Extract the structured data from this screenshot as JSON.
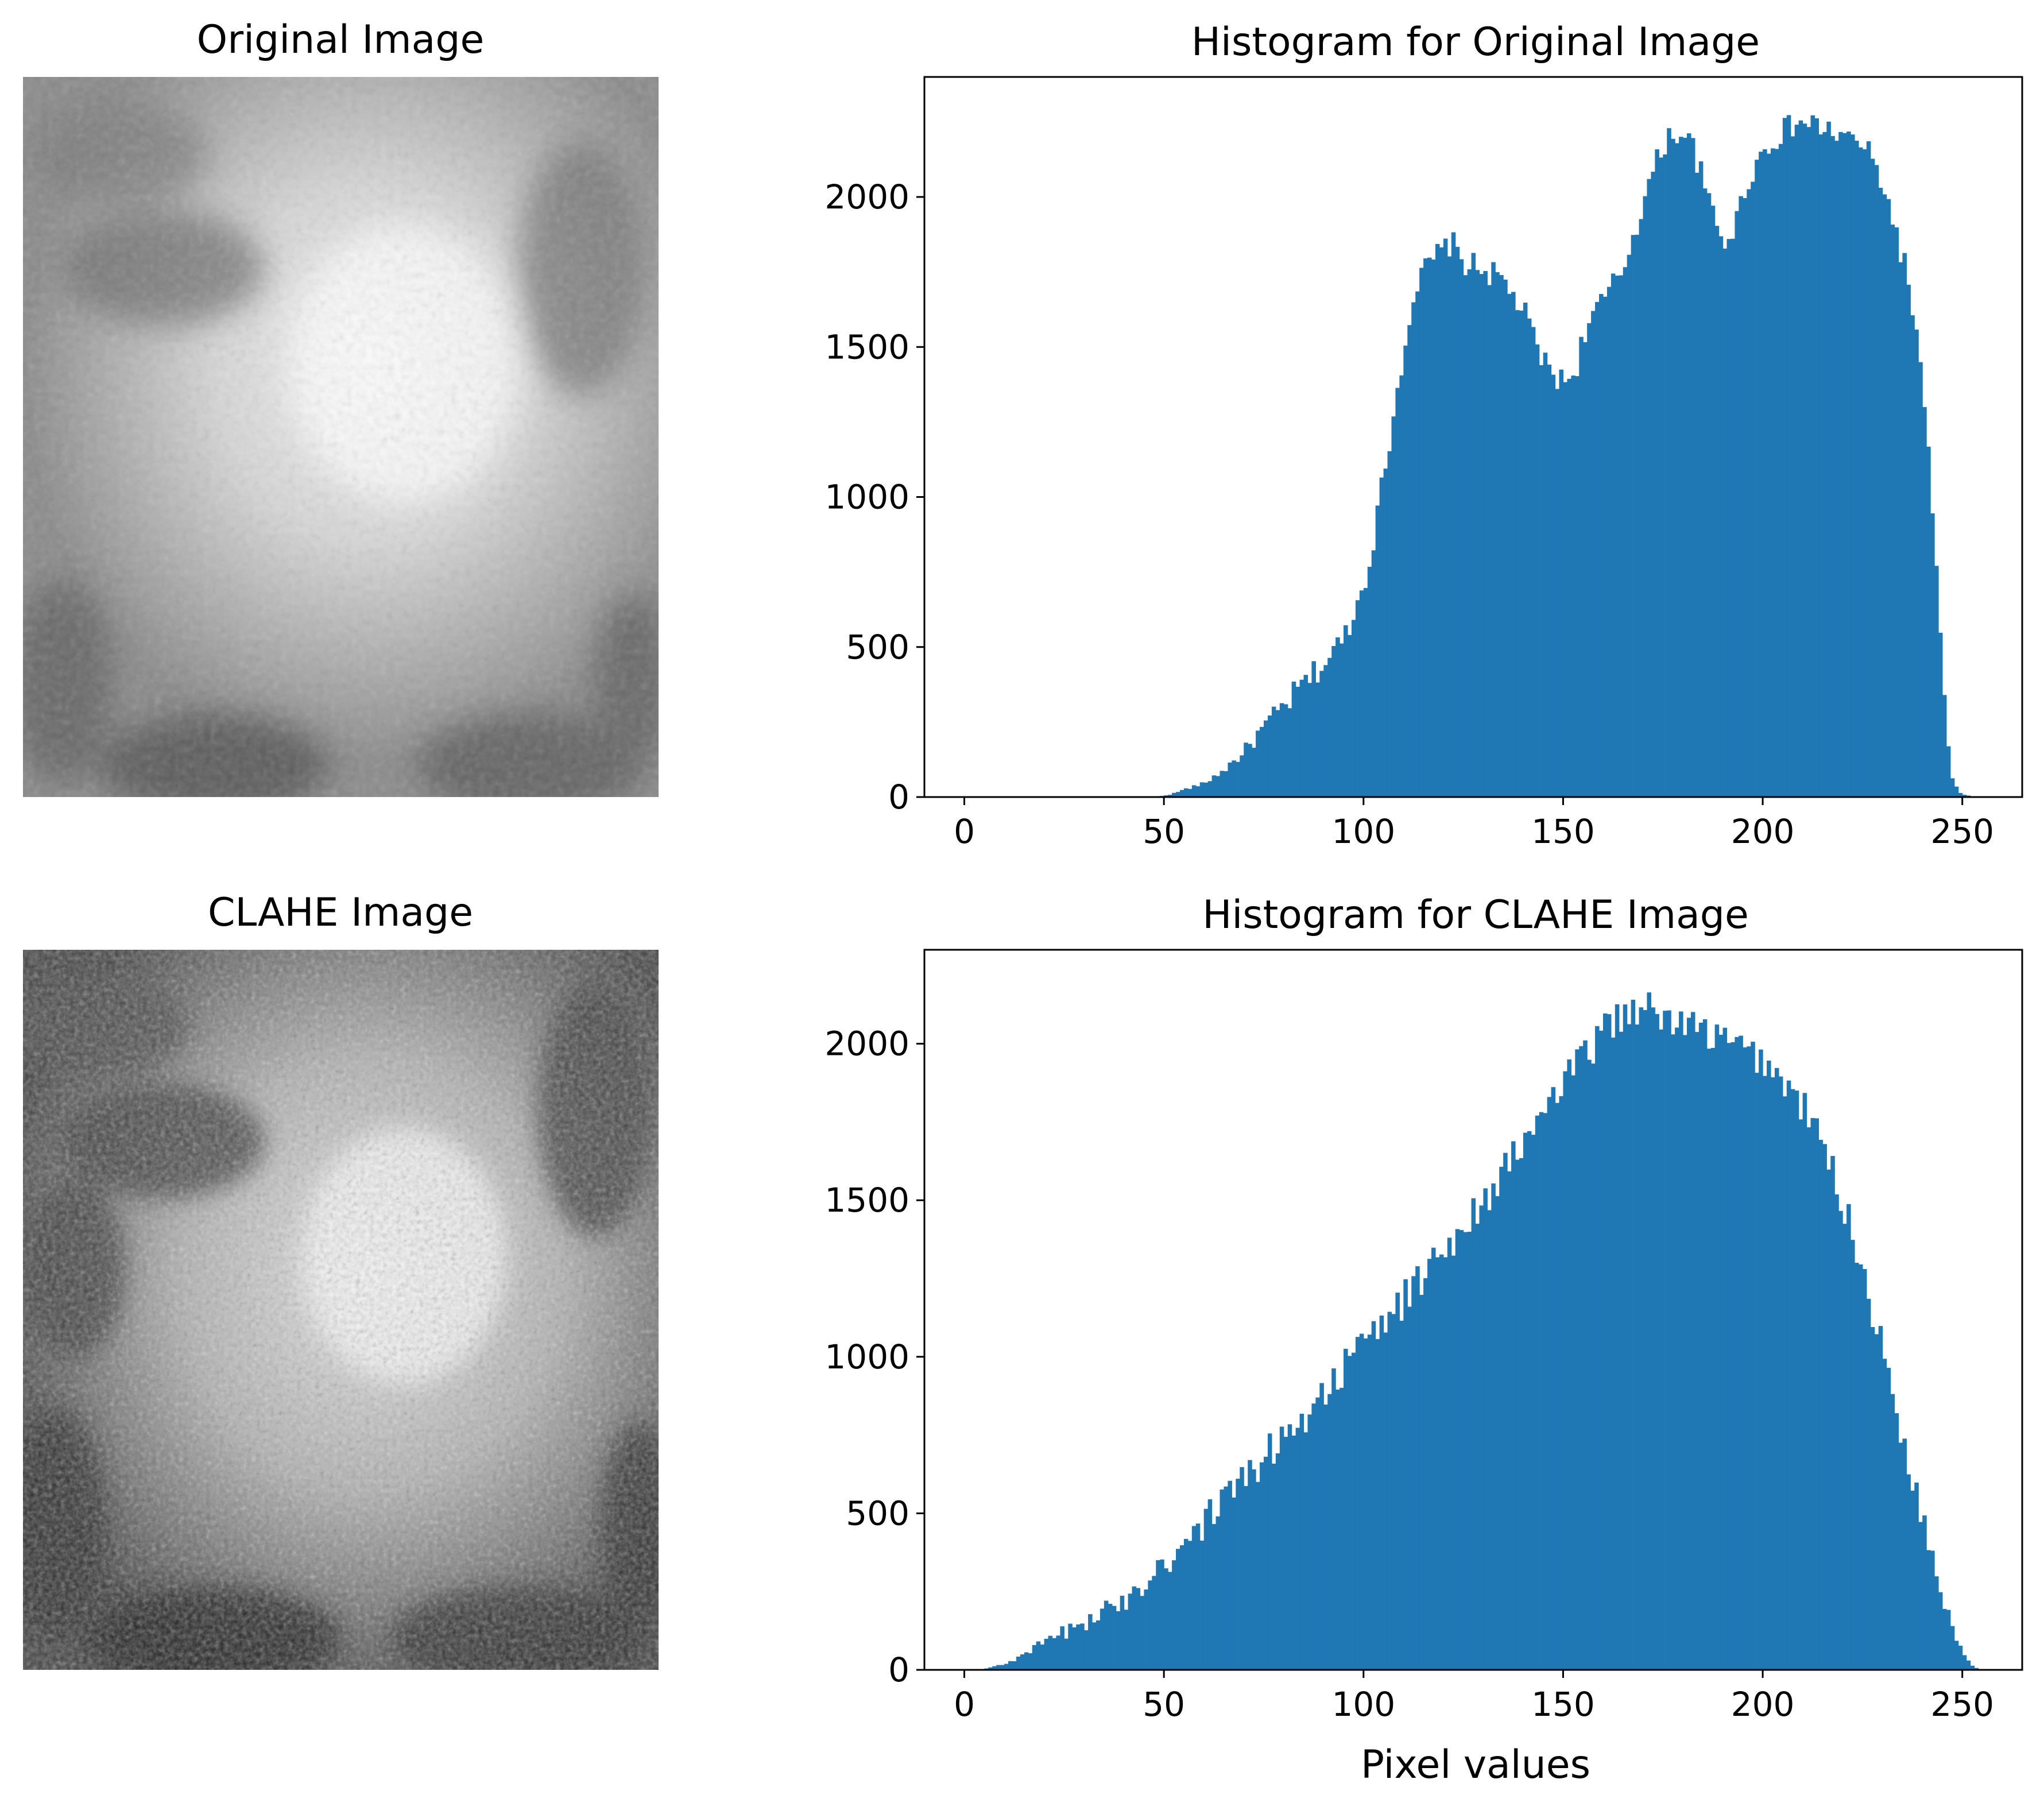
{
  "figure": {
    "panels": [
      {
        "type": "image",
        "title": "Original Image"
      },
      {
        "type": "image",
        "title": "CLAHE Image"
      }
    ]
  },
  "colors": {
    "bar": "#1f77b4",
    "axis": "#000000"
  },
  "chart_data": [
    {
      "type": "bar",
      "title": "Histogram for Original Image",
      "xlabel": "",
      "ylabel": "",
      "xlim": [
        -10,
        265
      ],
      "ylim": [
        0,
        2400
      ],
      "xticks": [
        0,
        50,
        100,
        150,
        200,
        250
      ],
      "yticks": [
        0,
        500,
        1000,
        1500,
        2000
      ],
      "bins": 256,
      "anchors": [
        [
          0,
          0
        ],
        [
          48,
          0
        ],
        [
          52,
          10
        ],
        [
          55,
          25
        ],
        [
          60,
          45
        ],
        [
          65,
          90
        ],
        [
          70,
          150
        ],
        [
          75,
          230
        ],
        [
          80,
          300
        ],
        [
          85,
          380
        ],
        [
          90,
          440
        ],
        [
          95,
          530
        ],
        [
          100,
          700
        ],
        [
          103,
          900
        ],
        [
          106,
          1150
        ],
        [
          109,
          1400
        ],
        [
          112,
          1650
        ],
        [
          115,
          1750
        ],
        [
          118,
          1800
        ],
        [
          122,
          1850
        ],
        [
          125,
          1780
        ],
        [
          130,
          1760
        ],
        [
          135,
          1720
        ],
        [
          140,
          1620
        ],
        [
          145,
          1450
        ],
        [
          150,
          1380
        ],
        [
          153,
          1420
        ],
        [
          156,
          1580
        ],
        [
          160,
          1650
        ],
        [
          165,
          1760
        ],
        [
          170,
          1980
        ],
        [
          173,
          2100
        ],
        [
          176,
          2200
        ],
        [
          180,
          2220
        ],
        [
          183,
          2150
        ],
        [
          186,
          2000
        ],
        [
          190,
          1850
        ],
        [
          193,
          1900
        ],
        [
          196,
          2050
        ],
        [
          200,
          2150
        ],
        [
          205,
          2220
        ],
        [
          210,
          2250
        ],
        [
          215,
          2230
        ],
        [
          220,
          2200
        ],
        [
          225,
          2180
        ],
        [
          230,
          2050
        ],
        [
          233,
          1900
        ],
        [
          236,
          1750
        ],
        [
          239,
          1500
        ],
        [
          241,
          1200
        ],
        [
          243,
          900
        ],
        [
          245,
          400
        ],
        [
          247,
          80
        ],
        [
          249,
          15
        ],
        [
          251,
          5
        ],
        [
          255,
          0
        ]
      ],
      "noise": 45
    },
    {
      "type": "bar",
      "title": "Histogram for CLAHE Image",
      "xlabel": "Pixel values",
      "ylabel": "",
      "xlim": [
        -10,
        265
      ],
      "ylim": [
        0,
        2300
      ],
      "xticks": [
        0,
        50,
        100,
        150,
        200,
        250
      ],
      "yticks": [
        0,
        500,
        1000,
        1500,
        2000
      ],
      "bins": 256,
      "anchors": [
        [
          0,
          0
        ],
        [
          5,
          3
        ],
        [
          10,
          20
        ],
        [
          15,
          45
        ],
        [
          20,
          90
        ],
        [
          25,
          120
        ],
        [
          30,
          150
        ],
        [
          35,
          180
        ],
        [
          40,
          230
        ],
        [
          45,
          290
        ],
        [
          50,
          350
        ],
        [
          55,
          400
        ],
        [
          60,
          470
        ],
        [
          65,
          540
        ],
        [
          70,
          610
        ],
        [
          75,
          680
        ],
        [
          80,
          740
        ],
        [
          85,
          810
        ],
        [
          90,
          890
        ],
        [
          95,
          960
        ],
        [
          100,
          1040
        ],
        [
          105,
          1110
        ],
        [
          110,
          1180
        ],
        [
          115,
          1260
        ],
        [
          120,
          1340
        ],
        [
          125,
          1420
        ],
        [
          130,
          1500
        ],
        [
          135,
          1590
        ],
        [
          140,
          1680
        ],
        [
          145,
          1780
        ],
        [
          150,
          1870
        ],
        [
          155,
          1950
        ],
        [
          160,
          2040
        ],
        [
          165,
          2100
        ],
        [
          170,
          2120
        ],
        [
          175,
          2080
        ],
        [
          180,
          2060
        ],
        [
          185,
          2040
        ],
        [
          190,
          2010
        ],
        [
          195,
          1980
        ],
        [
          200,
          1950
        ],
        [
          205,
          1880
        ],
        [
          210,
          1800
        ],
        [
          215,
          1680
        ],
        [
          220,
          1500
        ],
        [
          225,
          1280
        ],
        [
          230,
          1020
        ],
        [
          235,
          750
        ],
        [
          240,
          480
        ],
        [
          245,
          250
        ],
        [
          248,
          120
        ],
        [
          250,
          60
        ],
        [
          252,
          20
        ],
        [
          254,
          2
        ],
        [
          255,
          0
        ]
      ],
      "noise": 60
    }
  ]
}
